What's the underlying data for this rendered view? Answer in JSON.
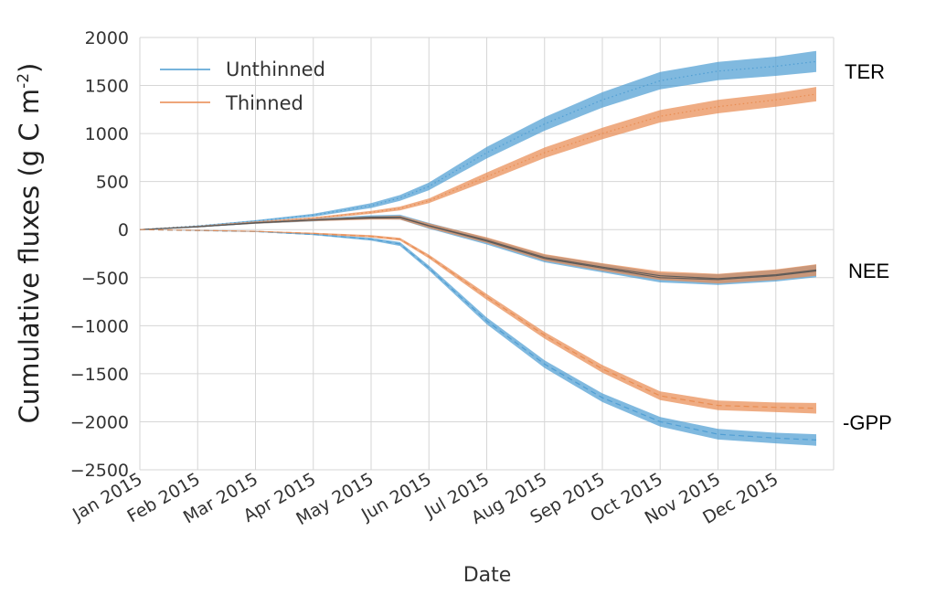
{
  "chart_data": {
    "type": "area",
    "xlabel": "Date",
    "ylabel_main": "Cumulative fluxes (g C m",
    "ylabel_sup": "-2",
    "ylabel_close": ")",
    "ylim": [
      -2500,
      2000
    ],
    "yticks": [
      2000,
      1500,
      1000,
      500,
      0,
      -500,
      -1000,
      -1500,
      -2000,
      -2500
    ],
    "ytick_labels": [
      "2000",
      "1500",
      "1000",
      "500",
      "0",
      "−500",
      "−1000",
      "−1500",
      "−2000",
      "−2500"
    ],
    "xlim": [
      0,
      12
    ],
    "xticks": [
      0,
      1,
      2,
      3,
      4,
      5,
      6,
      7,
      8,
      9,
      10,
      11
    ],
    "xtick_labels": [
      "Jan 2015",
      "Feb 2015",
      "Mar 2015",
      "Apr 2015",
      "May 2015",
      "Jun 2015",
      "Jul 2015",
      "Aug 2015",
      "Sep 2015",
      "Oct 2015",
      "Nov 2015",
      "Dec 2015"
    ],
    "grid": true,
    "legend_position": "top-left",
    "legend": [
      {
        "label": "Unthinned",
        "color": "#4a9bd1"
      },
      {
        "label": "Thinned",
        "color": "#e8894e"
      }
    ],
    "annotations": [
      "TER",
      "NEE",
      "-GPP"
    ],
    "x": [
      0,
      1,
      2,
      3,
      4,
      4.5,
      5,
      6,
      7,
      8,
      9,
      10,
      11,
      11.7
    ],
    "series": [
      {
        "name": "Unthinned TER",
        "group": "Unthinned",
        "color": "#4a9bd1",
        "style": "dotted",
        "values": [
          0,
          40,
          90,
          150,
          250,
          330,
          450,
          800,
          1100,
          1350,
          1550,
          1650,
          1700,
          1750
        ],
        "halfwidth": [
          0,
          3,
          8,
          15,
          25,
          30,
          40,
          60,
          70,
          80,
          90,
          95,
          100,
          110
        ]
      },
      {
        "name": "Thinned TER",
        "group": "Thinned",
        "color": "#e8894e",
        "style": "dotted",
        "values": [
          0,
          35,
          80,
          120,
          180,
          220,
          300,
          550,
          800,
          1000,
          1180,
          1280,
          1350,
          1410
        ],
        "halfwidth": [
          0,
          3,
          6,
          10,
          15,
          20,
          25,
          45,
          55,
          60,
          65,
          70,
          70,
          75
        ]
      },
      {
        "name": "Unthinned NEE",
        "group": "Unthinned",
        "color": "#4a9bd1",
        "style": "solid",
        "values": [
          0,
          30,
          70,
          100,
          130,
          130,
          40,
          -120,
          -300,
          -400,
          -500,
          -520,
          -480,
          -430
        ],
        "halfwidth": [
          0,
          5,
          10,
          15,
          20,
          25,
          30,
          35,
          40,
          45,
          50,
          55,
          60,
          65
        ]
      },
      {
        "name": "Thinned NEE",
        "group": "Thinned",
        "color": "#e8894e",
        "style": "solid",
        "values": [
          0,
          30,
          70,
          100,
          120,
          125,
          40,
          -110,
          -290,
          -390,
          -480,
          -510,
          -470,
          -420
        ],
        "halfwidth": [
          0,
          4,
          8,
          12,
          16,
          20,
          25,
          30,
          35,
          40,
          45,
          50,
          55,
          60
        ]
      },
      {
        "name": "Unthinned -GPP",
        "group": "Unthinned",
        "color": "#4a9bd1",
        "style": "dashed",
        "values": [
          0,
          -10,
          -20,
          -50,
          -100,
          -150,
          -400,
          -950,
          -1400,
          -1750,
          -2000,
          -2130,
          -2170,
          -2190
        ],
        "halfwidth": [
          0,
          3,
          5,
          8,
          15,
          20,
          25,
          35,
          40,
          45,
          50,
          55,
          55,
          60
        ]
      },
      {
        "name": "Thinned -GPP",
        "group": "Thinned",
        "color": "#e8894e",
        "style": "dashed",
        "values": [
          0,
          -8,
          -18,
          -40,
          -70,
          -100,
          -280,
          -700,
          -1100,
          -1450,
          -1730,
          -1830,
          -1850,
          -1860
        ],
        "halfwidth": [
          0,
          3,
          5,
          8,
          12,
          15,
          20,
          30,
          35,
          40,
          45,
          50,
          50,
          55
        ]
      }
    ]
  }
}
